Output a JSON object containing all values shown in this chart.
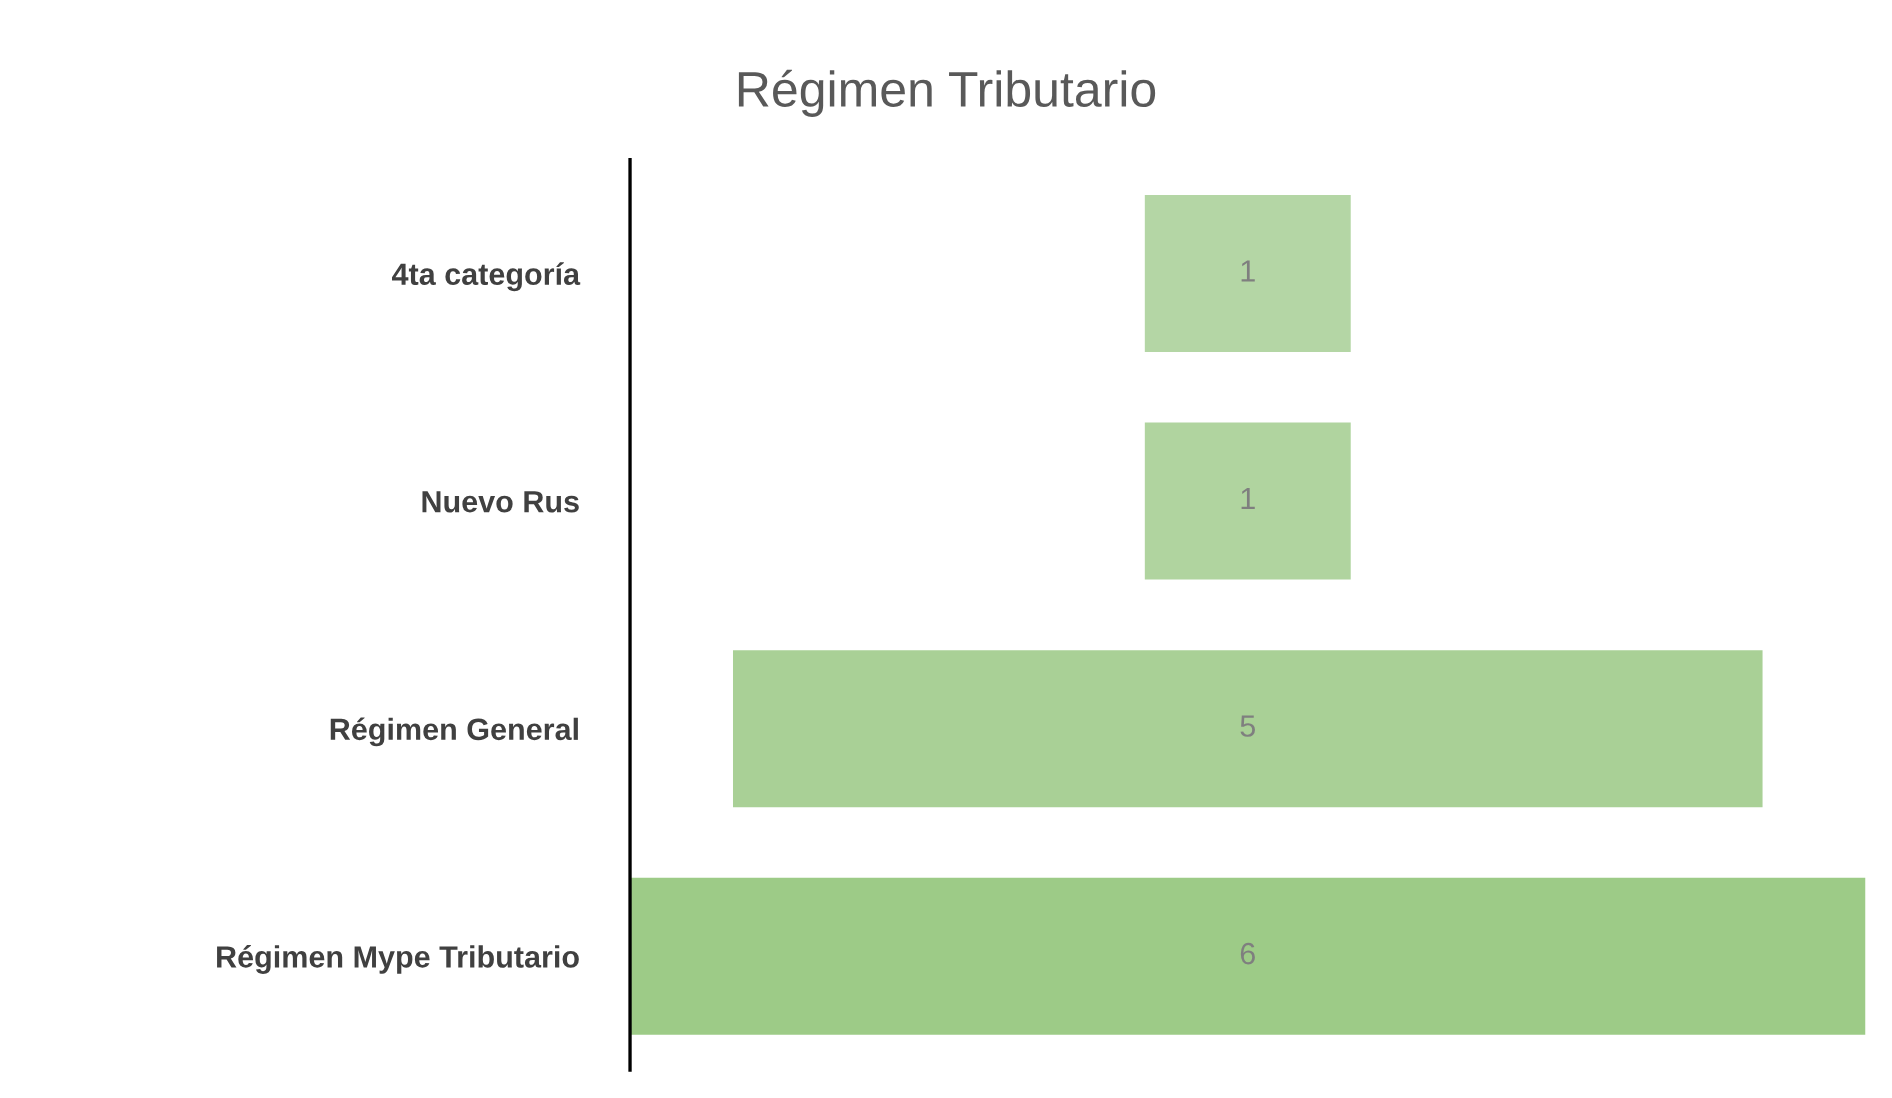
{
  "chart_data": {
    "type": "other",
    "title": "Régimen Tributario",
    "categories": [
      "4ta categoría",
      "Nuevo Rus",
      "Régimen General",
      "Régimen Mype Tributario"
    ],
    "values": [
      1,
      1,
      5,
      6
    ],
    "colors": [
      "#b4d6a5",
      "#b0d49f",
      "#a9d096",
      "#9dcb87"
    ],
    "data_labels": true,
    "legend": false
  }
}
